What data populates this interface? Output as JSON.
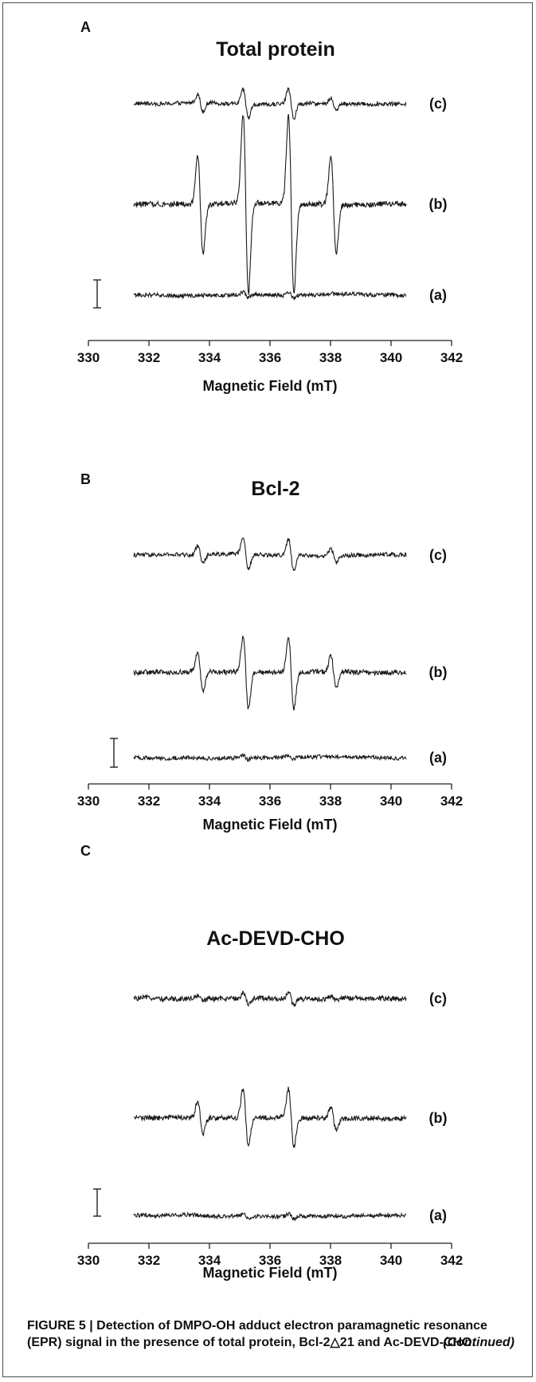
{
  "figure_label": "FIGURE 5",
  "caption": {
    "text": "FIGURE 5 | Detection of DMPO-OH adduct electron paramagnetic resonance (EPR) signal in the presence of total protein, Bcl-2△21 and Ac-DEVD-CHO.",
    "continued": "(Continued)"
  },
  "chart_data": [
    {
      "type": "line",
      "panel": "A",
      "title": "Total protein",
      "xlabel": "Magnetic Field (mT)",
      "ylabel": "",
      "xlim": [
        330,
        342
      ],
      "xticks": [
        330,
        332,
        334,
        336,
        338,
        340,
        342
      ],
      "grid": false,
      "x_range_traces": [
        331.5,
        340.5
      ],
      "line_positions_mT": [
        333.7,
        335.2,
        336.7,
        338.1
      ],
      "series": [
        {
          "name": "(c)",
          "relative_amplitude": [
            0.1,
            0.16,
            0.16,
            0.07
          ],
          "noise": 0.022
        },
        {
          "name": "(b)",
          "relative_amplitude": [
            0.55,
            1.0,
            1.0,
            0.55
          ],
          "noise": 0.03
        },
        {
          "name": "(a)",
          "relative_amplitude": [
            0.0,
            0.03,
            0.03,
            0.0
          ],
          "noise": 0.022
        }
      ]
    },
    {
      "type": "line",
      "panel": "B",
      "title": "Bcl-2",
      "xlabel": "Magnetic Field (mT)",
      "ylabel": "",
      "xlim": [
        330,
        342
      ],
      "xticks": [
        330,
        332,
        334,
        336,
        338,
        340,
        342
      ],
      "grid": false,
      "x_range_traces": [
        331.5,
        340.5
      ],
      "line_positions_mT": [
        333.7,
        335.2,
        336.7,
        338.1
      ],
      "series": [
        {
          "name": "(c)",
          "relative_amplitude": [
            0.1,
            0.18,
            0.18,
            0.08
          ],
          "noise": 0.022
        },
        {
          "name": "(b)",
          "relative_amplitude": [
            0.22,
            0.4,
            0.4,
            0.18
          ],
          "noise": 0.028
        },
        {
          "name": "(a)",
          "relative_amplitude": [
            0.0,
            0.02,
            0.02,
            0.0
          ],
          "noise": 0.022
        }
      ]
    },
    {
      "type": "line",
      "panel": "C",
      "title": "Ac-DEVD-CHO",
      "xlabel": "Magnetic Field (mT)",
      "ylabel": "",
      "xlim": [
        330,
        342
      ],
      "xticks": [
        330,
        332,
        334,
        336,
        338,
        340,
        342
      ],
      "grid": false,
      "x_range_traces": [
        331.5,
        340.5
      ],
      "line_positions_mT": [
        333.7,
        335.2,
        336.7,
        338.1
      ],
      "series": [
        {
          "name": "(c)",
          "relative_amplitude": [
            0.03,
            0.07,
            0.07,
            0.03
          ],
          "noise": 0.028
        },
        {
          "name": "(b)",
          "relative_amplitude": [
            0.18,
            0.32,
            0.32,
            0.14
          ],
          "noise": 0.028
        },
        {
          "name": "(a)",
          "relative_amplitude": [
            0.0,
            0.03,
            0.03,
            0.0
          ],
          "noise": 0.022
        }
      ]
    }
  ]
}
